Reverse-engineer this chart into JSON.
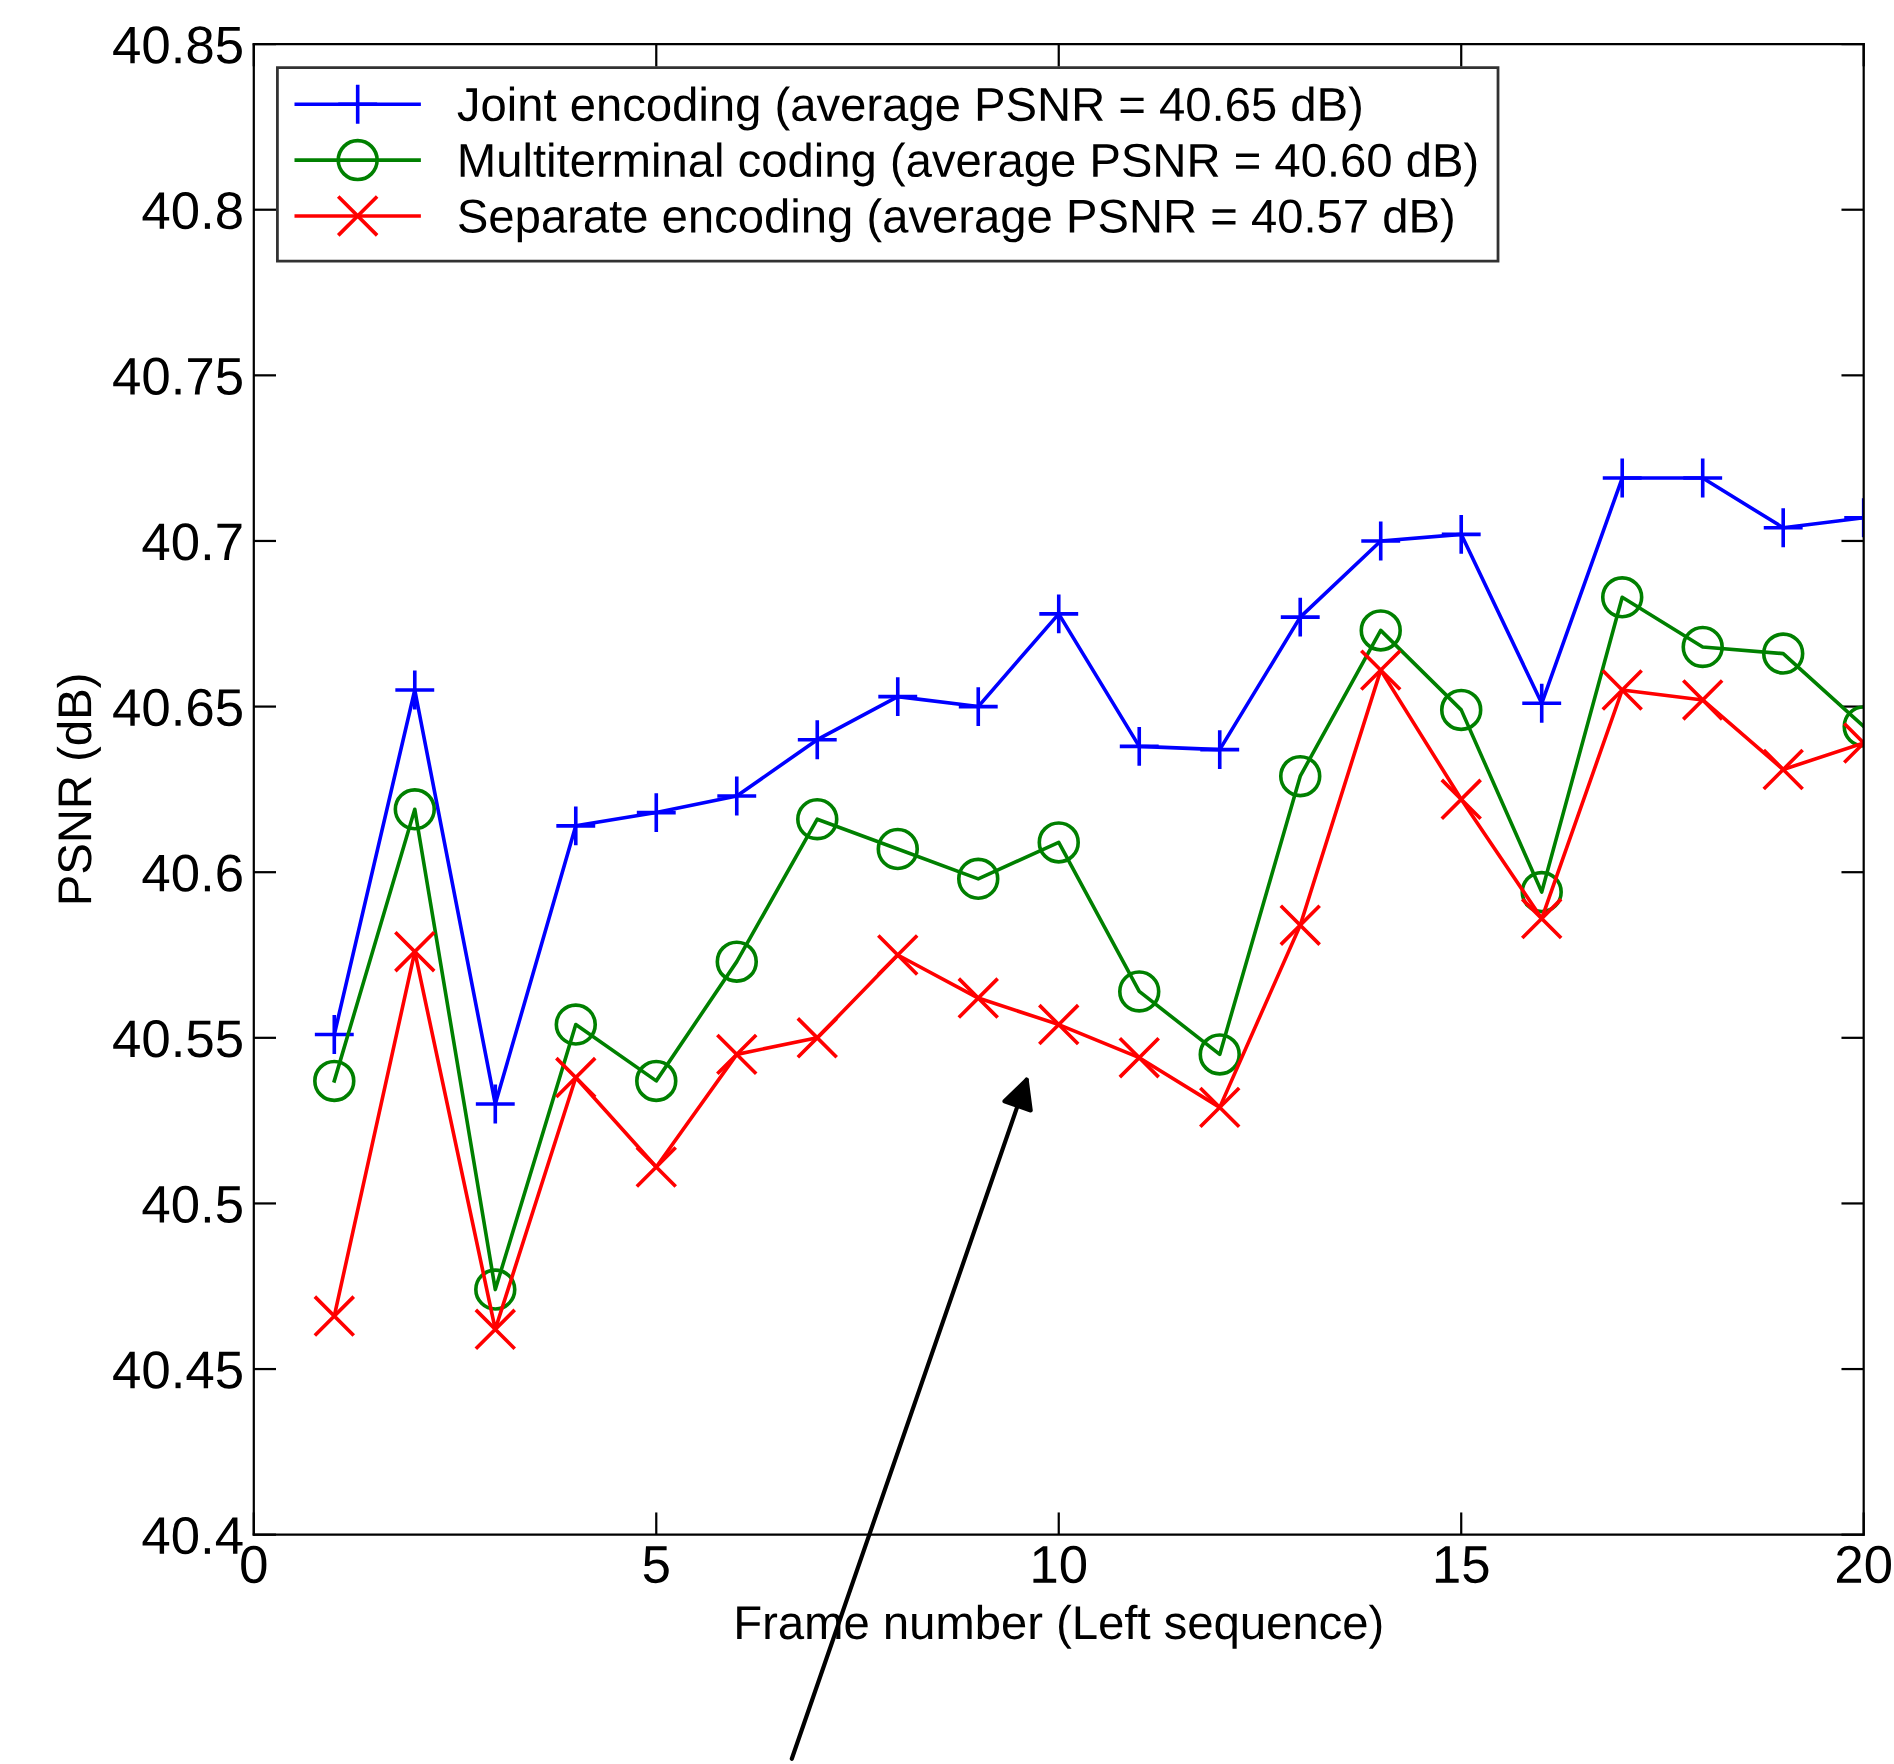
{
  "chart_data": {
    "type": "line",
    "xlabel": "Frame number (Left sequence)",
    "ylabel": "PSNR (dB)",
    "x": [
      1,
      2,
      3,
      4,
      5,
      6,
      7,
      8,
      9,
      10,
      11,
      12,
      13,
      14,
      15,
      16,
      17,
      18,
      19,
      20
    ],
    "series": [
      {
        "name": "Joint encoding (average PSNR = 40.65 dB)",
        "color": "#0000ff",
        "marker": "plus",
        "values": [
          40.551,
          40.655,
          40.53,
          40.614,
          40.618,
          40.623,
          40.64,
          40.653,
          40.65,
          40.678,
          40.638,
          40.637,
          40.677,
          40.7,
          40.702,
          40.651,
          40.719,
          40.719,
          40.704,
          40.707
        ]
      },
      {
        "name": "Multiterminal coding (average PSNR = 40.60 dB)",
        "color": "#008000",
        "marker": "circle",
        "values": [
          40.537,
          40.619,
          40.474,
          40.554,
          40.537,
          40.573,
          40.616,
          40.607,
          40.598,
          40.609,
          40.564,
          40.545,
          40.629,
          40.673,
          40.649,
          40.594,
          40.683,
          40.668,
          40.666,
          40.644
        ]
      },
      {
        "name": "Separate encoding (average PSNR = 40.57 dB)",
        "color": "#ff0000",
        "marker": "cross",
        "values": [
          40.466,
          40.576,
          40.462,
          40.538,
          40.511,
          40.545,
          40.55,
          40.575,
          40.562,
          40.554,
          40.544,
          40.529,
          40.584,
          40.661,
          40.622,
          40.586,
          40.655,
          40.652,
          40.631,
          40.639
        ]
      }
    ],
    "xlim": [
      0,
      20
    ],
    "xticks": [
      0,
      5,
      10,
      15,
      20
    ],
    "ylim": [
      40.4,
      40.85
    ],
    "yticks": [
      40.4,
      40.45,
      40.5,
      40.55,
      40.6,
      40.65,
      40.7,
      40.75,
      40.8,
      40.85
    ],
    "grid": false,
    "legend": "top left",
    "line_style": "solid"
  }
}
